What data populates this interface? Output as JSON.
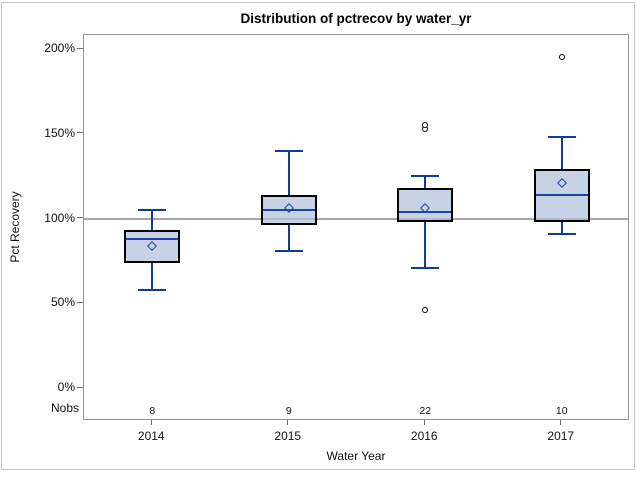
{
  "chart_data": {
    "type": "boxplot",
    "title": "Distribution of pctrecov by water_yr",
    "xlabel": "Water Year",
    "ylabel": "Pct Recovery",
    "ylim": [
      0,
      200
    ],
    "yticks": [
      0,
      50,
      100,
      150,
      200
    ],
    "ytick_suffix": "%",
    "refline_y": 100,
    "grid": "off",
    "legend": "none",
    "nobs_header": "Nobs",
    "categories": [
      "2014",
      "2015",
      "2016",
      "2017"
    ],
    "series": [
      {
        "category": "2014",
        "nobs": "8",
        "whisker_low": 58,
        "q1": 74,
        "median": 88,
        "mean": 84,
        "q3": 93,
        "whisker_high": 105,
        "outliers": []
      },
      {
        "category": "2015",
        "nobs": "9",
        "whisker_low": 81,
        "q1": 96,
        "median": 105,
        "mean": 106,
        "q3": 114,
        "whisker_high": 140,
        "outliers": []
      },
      {
        "category": "2016",
        "nobs": "22",
        "whisker_low": 71,
        "q1": 98,
        "median": 104,
        "mean": 106,
        "q3": 118,
        "whisker_high": 125,
        "outliers": [
          46,
          153,
          155
        ]
      },
      {
        "category": "2017",
        "nobs": "10",
        "whisker_low": 91,
        "q1": 98,
        "median": 114,
        "mean": 121,
        "q3": 129,
        "whisker_high": 148,
        "outliers": [
          195
        ]
      }
    ],
    "colors": {
      "box_fill": "#ccd5e4",
      "box_border": "#000000",
      "whisker": "#0f3d91",
      "median": "#1a43a8",
      "mean_marker": "#1a43a8",
      "outlier": "#000000",
      "refline": "#a8a8a8",
      "frame": "#949494",
      "text": "#111111"
    }
  }
}
